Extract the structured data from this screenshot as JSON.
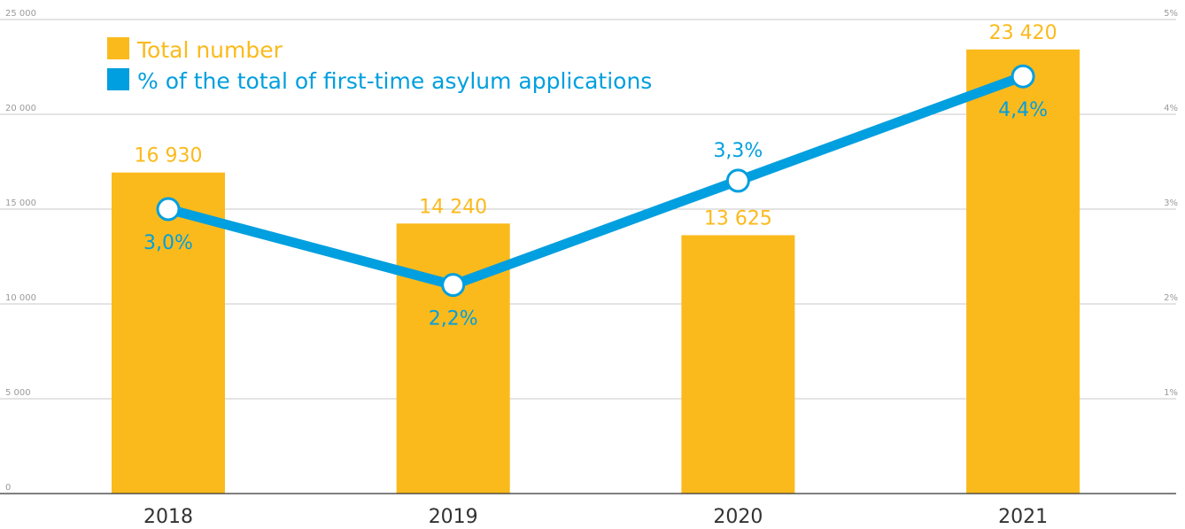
{
  "chart_data": {
    "type": "bar",
    "categories": [
      "2018",
      "2019",
      "2020",
      "2021"
    ],
    "series": [
      {
        "name": "Total number",
        "type": "bar",
        "axis": "left",
        "values": [
          16930,
          14240,
          13625,
          23420
        ],
        "labels": [
          "16 930",
          "14 240",
          "13 625",
          "23 420"
        ],
        "color": "#FBBA1C"
      },
      {
        "name": "% of the total of first-time asylum applications",
        "type": "line",
        "axis": "right",
        "values": [
          3.0,
          2.2,
          3.3,
          4.4
        ],
        "labels": [
          "3,0%",
          "2,2%",
          "3,3%",
          "4,4%"
        ],
        "color": "#009FDF"
      }
    ],
    "y_left": {
      "ylim": [
        0,
        25000
      ],
      "ticks": [
        0,
        5000,
        10000,
        15000,
        20000,
        25000
      ],
      "tick_labels": [
        "0",
        "5 000",
        "10 000",
        "15 000",
        "20 000",
        "25 000"
      ]
    },
    "y_right": {
      "ylim": [
        0,
        5
      ],
      "ticks": [
        1,
        2,
        3,
        4,
        5
      ],
      "tick_labels": [
        "1%",
        "2%",
        "3%",
        "4%",
        "5%"
      ]
    },
    "grid": true,
    "legend": "top-left",
    "title": "",
    "xlabel": "",
    "ylabel": ""
  }
}
